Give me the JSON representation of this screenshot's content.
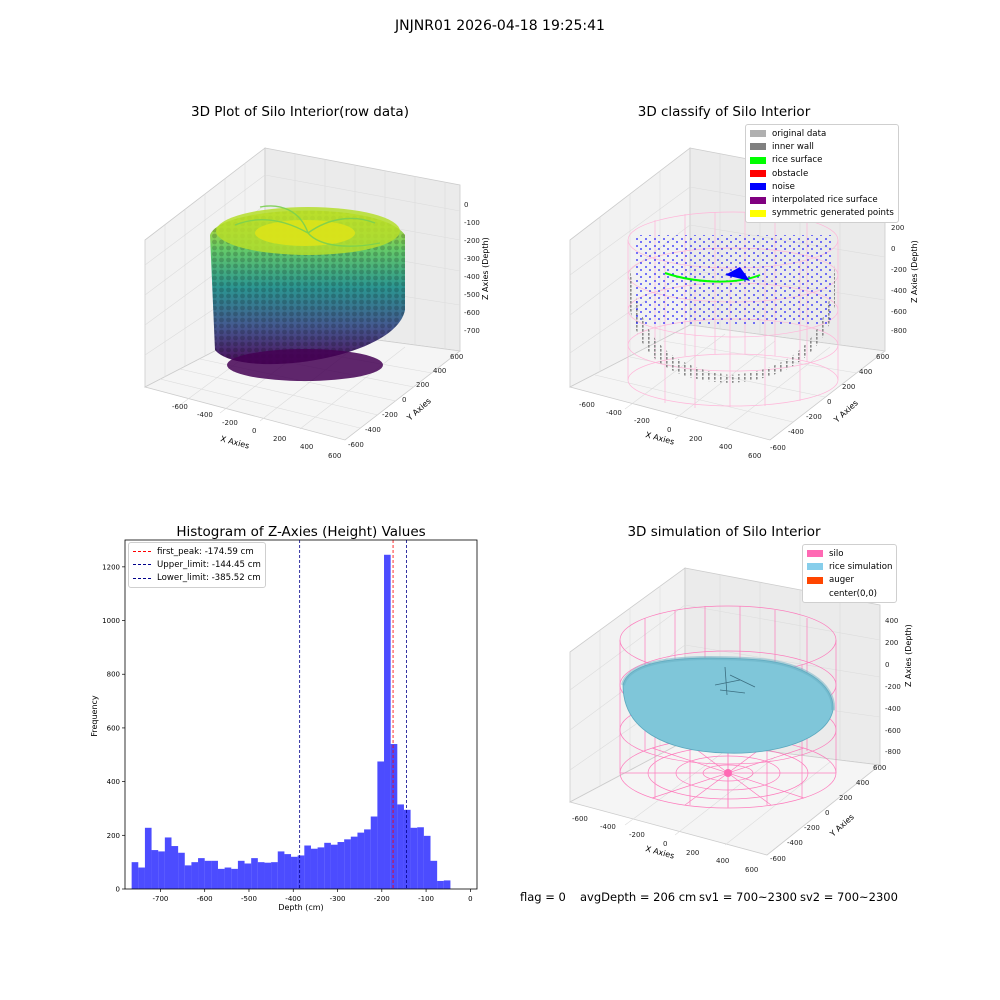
{
  "figure": {
    "title": "JNJNR01 2026-04-18 19:25:41"
  },
  "panels": {
    "raw": {
      "title": "3D Plot of Silo Interior(row data)",
      "xlabel": "X Axies",
      "ylabel": "Y Axies",
      "zlabel": "Z Axies (Depth)",
      "x_ticks": [
        "-600",
        "-400",
        "-200",
        "0",
        "200",
        "400",
        "600"
      ],
      "y_ticks": [
        "-600",
        "-400",
        "-200",
        "0",
        "200",
        "400",
        "600"
      ],
      "z_ticks": [
        "0",
        "-100",
        "-200",
        "-300",
        "-400",
        "-500",
        "-600",
        "-700"
      ]
    },
    "classify": {
      "title": "3D classify of Silo Interior",
      "xlabel": "X Axies",
      "ylabel": "Y Axies",
      "zlabel": "Z Axies (Depth)",
      "x_ticks": [
        "-600",
        "-400",
        "-200",
        "0",
        "200",
        "400",
        "600"
      ],
      "y_ticks": [
        "-600",
        "-400",
        "-200",
        "0",
        "200",
        "400",
        "600"
      ],
      "z_ticks": [
        "200",
        "0",
        "-200",
        "-400",
        "-600",
        "-800"
      ],
      "legend": [
        {
          "label": "original data",
          "color": "#b0b0b0"
        },
        {
          "label": "inner wall",
          "color": "#808080"
        },
        {
          "label": "rice surface",
          "color": "#00ff00"
        },
        {
          "label": "obstacle",
          "color": "#ff0000"
        },
        {
          "label": "noise",
          "color": "#0000ff"
        },
        {
          "label": "interpolated rice surface",
          "color": "#800080"
        },
        {
          "label": "symmetric generated points",
          "color": "#ffff00"
        }
      ]
    },
    "simulation": {
      "title": "3D simulation of Silo Interior",
      "xlabel": "X Axies",
      "ylabel": "Y Axies",
      "zlabel": "Z Axies (Depth)",
      "x_ticks": [
        "-600",
        "-400",
        "-200",
        "0",
        "200",
        "400",
        "600"
      ],
      "y_ticks": [
        "-600",
        "-400",
        "-200",
        "0",
        "200",
        "400",
        "600"
      ],
      "z_ticks": [
        "400",
        "200",
        "0",
        "-200",
        "-400",
        "-600",
        "-800"
      ],
      "legend": [
        {
          "label": "silo",
          "color": "#ff69b4"
        },
        {
          "label": "rice simulation",
          "color": "#87ceeb"
        },
        {
          "label": "auger",
          "color": "#ff4500"
        },
        {
          "label": "center(0,0)",
          "color": ""
        }
      ]
    }
  },
  "status": {
    "flag": "flag = 0",
    "avg_depth": "avgDepth = 206 cm",
    "sv1": "sv1 = 700~2300",
    "sv2": "sv2 = 700~2300"
  },
  "chart_data": [
    {
      "type": "bar",
      "title": "Histogram of Z-Axies (Height) Values",
      "xlabel": "Depth (cm)",
      "ylabel": "Frequency",
      "xlim": [
        -780,
        15
      ],
      "ylim": [
        0,
        1300
      ],
      "x_ticks": [
        -700,
        -600,
        -500,
        -400,
        -300,
        -200,
        -100,
        0
      ],
      "y_ticks": [
        0,
        200,
        400,
        600,
        800,
        1000,
        1200
      ],
      "bar_color": "#0000ff",
      "bins": {
        "start": -765,
        "width": 15,
        "values": [
          100,
          80,
          228,
          145,
          140,
          192,
          160,
          135,
          88,
          100,
          115,
          105,
          105,
          75,
          80,
          75,
          105,
          95,
          115,
          100,
          98,
          100,
          140,
          130,
          120,
          125,
          162,
          150,
          155,
          172,
          165,
          175,
          185,
          195,
          210,
          222,
          270,
          475,
          1245,
          540,
          315,
          295,
          228,
          230,
          198,
          105,
          30,
          32
        ]
      },
      "lines": [
        {
          "name": "first_peak: -174.59 cm",
          "x": -174.59,
          "color": "#ff0000"
        },
        {
          "name": "Upper_limit: -144.45 cm",
          "x": -144.45,
          "color": "#00008b"
        },
        {
          "name": "Lower_limit: -385.52 cm",
          "x": -385.52,
          "color": "#00008b"
        }
      ],
      "legend_position": "upper left"
    }
  ]
}
